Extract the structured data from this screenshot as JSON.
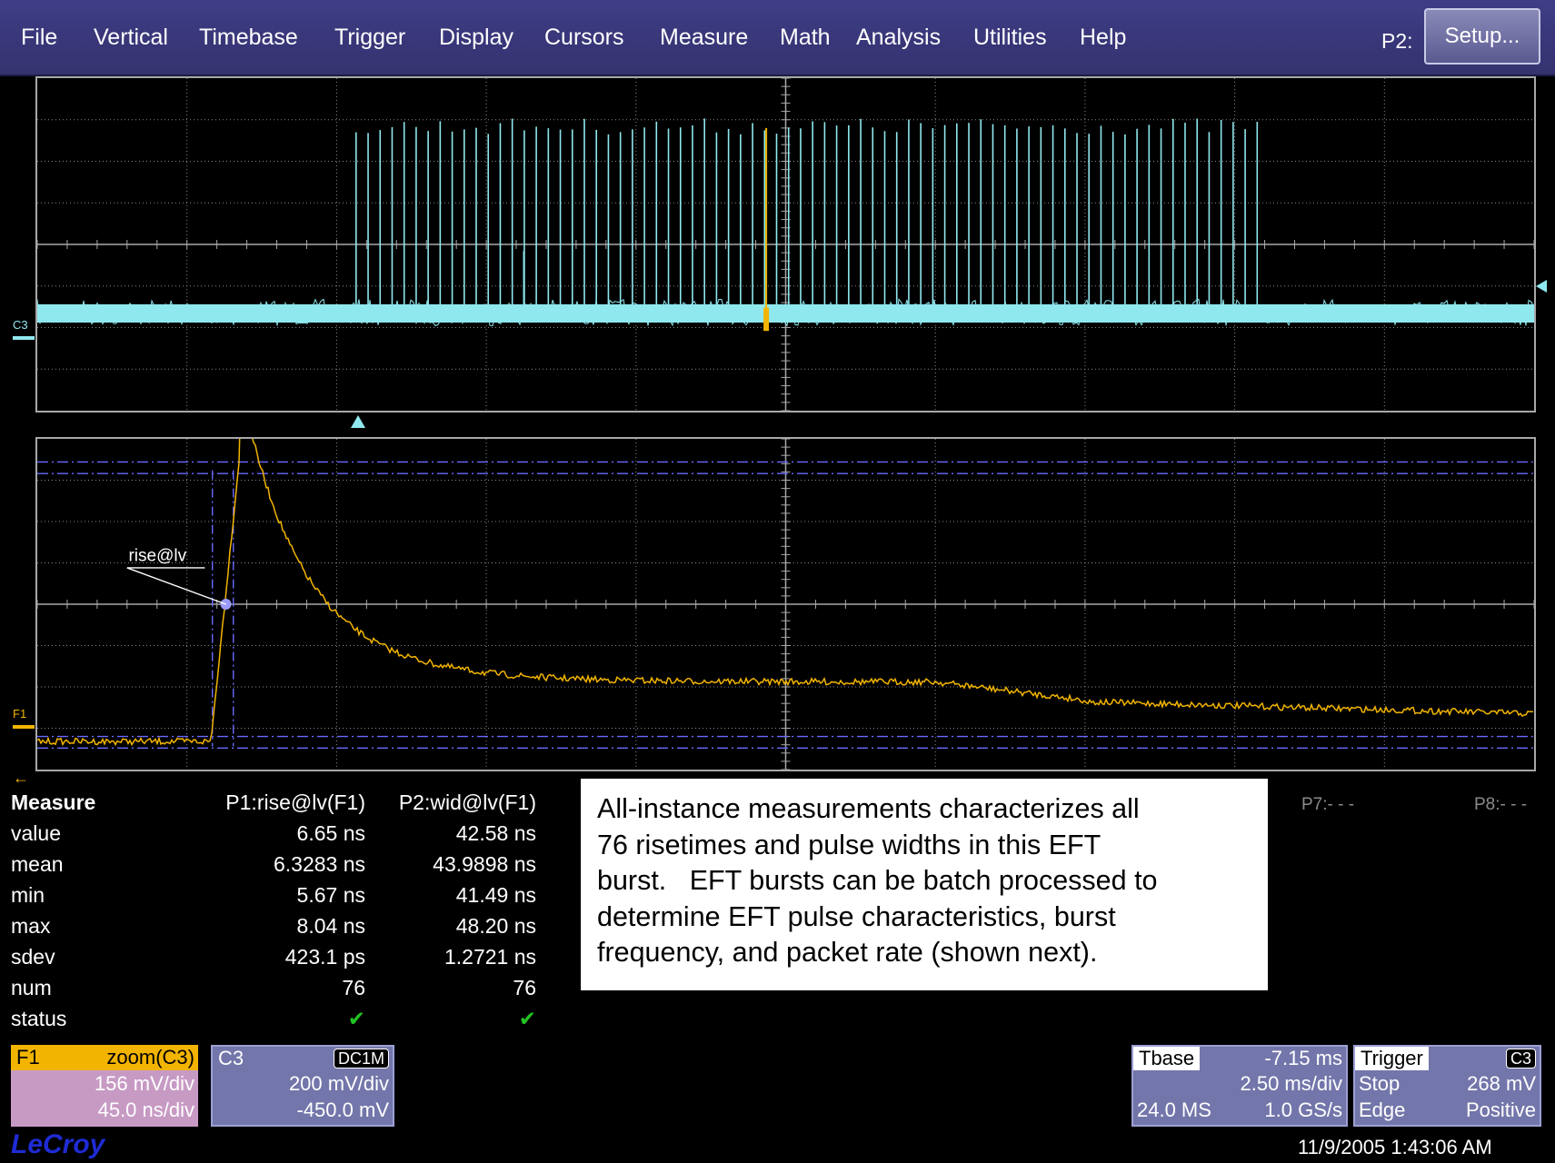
{
  "menu": {
    "items": [
      "File",
      "Vertical",
      "Timebase",
      "Trigger",
      "Display",
      "Cursors",
      "Measure",
      "Math",
      "Analysis",
      "Utilities",
      "Help"
    ],
    "p2_label": "P2:",
    "setup_label": "Setup..."
  },
  "traces": {
    "c3_label": "C3",
    "f1_label": "F1",
    "cursor_label": "rise@lv",
    "colors": {
      "c3": "#8fe8ee",
      "f1": "#f2b400",
      "cursor": "#6a6aff",
      "grid": "#a8a8a8"
    }
  },
  "measure": {
    "header": "Measure",
    "col1_header": "P1:rise@lv(F1)",
    "col2_header": "P2:wid@lv(F1)",
    "rows": [
      {
        "label": "value",
        "p1": "6.65 ns",
        "p2": "42.58 ns"
      },
      {
        "label": "mean",
        "p1": "6.3283 ns",
        "p2": "43.9898 ns"
      },
      {
        "label": "min",
        "p1": "5.67 ns",
        "p2": "41.49 ns"
      },
      {
        "label": "max",
        "p1": "8.04 ns",
        "p2": "48.20 ns"
      },
      {
        "label": "sdev",
        "p1": "423.1 ps",
        "p2": "1.2721 ns"
      },
      {
        "label": "num",
        "p1": "76",
        "p2": "76"
      },
      {
        "label": "status",
        "p1": "✔",
        "p2": "✔"
      }
    ],
    "p7_label": "P7:- - -",
    "p8_label": "P8:- - -"
  },
  "annotation": {
    "line1": "All-instance measurements characterizes all",
    "line2": "76 risetimes and pulse widths in this EFT",
    "line3": "burst.   EFT bursts can be batch processed to",
    "line4": "determine EFT pulse characteristics, burst",
    "line5": "frequency, and packet rate (shown next)."
  },
  "f1_desc": {
    "name": "F1",
    "func": "zoom(C3)",
    "vdiv": "156 mV/div",
    "tdiv": "45.0 ns/div"
  },
  "c3_desc": {
    "name": "C3",
    "coupling": "DC1M",
    "vdiv": "200 mV/div",
    "offset": "-450.0 mV"
  },
  "timebase": {
    "label": "Tbase",
    "delay": "-7.15 ms",
    "tdiv": "2.50 ms/div",
    "samples": "24.0 MS",
    "rate": "1.0 GS/s"
  },
  "trigger": {
    "label": "Trigger",
    "source": "C3",
    "mode": "Stop",
    "level": "268 mV",
    "type": "Edge",
    "slope": "Positive"
  },
  "brand": "LeCroy",
  "timestamp": "11/9/2005 1:43:06 AM"
}
